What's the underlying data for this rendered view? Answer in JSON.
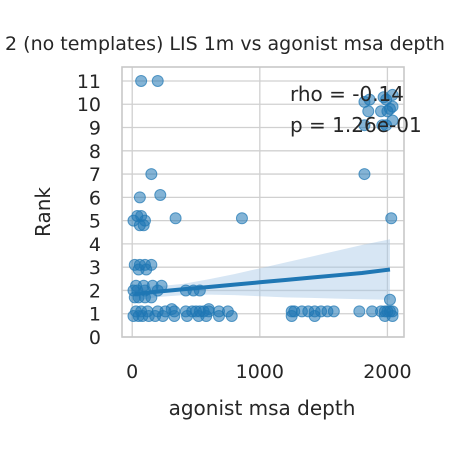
{
  "chart_data": {
    "type": "scatter",
    "title": "2 (no templates) LIS 1m vs agonist msa depth",
    "xlabel": "agonist msa depth",
    "ylabel": "Rank",
    "xlim": [
      -80,
      2130
    ],
    "ylim": [
      0,
      11.6
    ],
    "xticks": [
      0,
      1000,
      2000
    ],
    "yticks": [
      0,
      1,
      2,
      3,
      4,
      5,
      6,
      7,
      8,
      9,
      10,
      11
    ],
    "grid": true,
    "colors": {
      "points": "#1f77b4",
      "line": "#1f77b4",
      "band": "#a6c8e6",
      "grid": "#d0d0d0",
      "frame": "#c8c8c8"
    },
    "annotations": [
      "rho = -0.14",
      "p = 1.26e-01"
    ],
    "regression": {
      "x": [
        20,
        200,
        400,
        600,
        800,
        1000,
        1200,
        1400,
        1600,
        1800,
        2020
      ],
      "y": [
        1.85,
        1.95,
        2.05,
        2.15,
        2.25,
        2.35,
        2.45,
        2.55,
        2.65,
        2.75,
        2.9
      ],
      "lower": [
        1.55,
        1.72,
        1.8,
        1.82,
        1.8,
        1.75,
        1.7,
        1.68,
        1.65,
        1.62,
        1.6
      ],
      "upper": [
        2.15,
        2.18,
        2.28,
        2.48,
        2.7,
        2.95,
        3.2,
        3.45,
        3.7,
        3.95,
        4.2
      ]
    },
    "x": [
      70,
      200,
      1820,
      1960,
      1990,
      2040,
      1850,
      1950,
      2000,
      2020,
      2040,
      1820,
      1860,
      1990,
      1970,
      2040,
      150,
      1820,
      60,
      220,
      40,
      70,
      10,
      100,
      60,
      90,
      340,
      860,
      2030,
      20,
      60,
      100,
      150,
      50,
      110,
      30,
      90,
      160,
      230,
      10,
      40,
      100,
      200,
      420,
      480,
      530,
      20,
      50,
      100,
      150,
      310,
      600,
      30,
      70,
      120,
      200,
      260,
      330,
      420,
      470,
      500,
      530,
      560,
      600,
      680,
      750,
      1250,
      1270,
      1330,
      1380,
      1430,
      1480,
      1530,
      1580,
      1780,
      1880,
      1950,
      1980,
      2000,
      2020,
      2040,
      10,
      50,
      80,
      130,
      180,
      240,
      330,
      430,
      520,
      580,
      680,
      780,
      1250,
      1430,
      1980,
      2040,
      2020
    ],
    "y": [
      11,
      11,
      9.1,
      9.1,
      9.1,
      9.3,
      9.7,
      9.7,
      9.7,
      9.8,
      9.9,
      10.1,
      10.2,
      10.2,
      10.3,
      10.4,
      7,
      7,
      6,
      6.1,
      5.2,
      5.2,
      5,
      5,
      4.8,
      4.8,
      5.1,
      5.1,
      5.1,
      3.1,
      3.1,
      3.1,
      3.1,
      2.9,
      2.9,
      2.2,
      2.2,
      2.2,
      2.2,
      2,
      2,
      2,
      2,
      2,
      2,
      2,
      1.7,
      1.7,
      1.7,
      1.7,
      1.2,
      1.2,
      1.1,
      1.1,
      1.1,
      1.1,
      1.1,
      1.1,
      1.1,
      1.1,
      1.1,
      1.1,
      1.1,
      1.1,
      1.1,
      1.1,
      1.1,
      1.1,
      1.1,
      1.1,
      1.1,
      1.1,
      1.1,
      1.1,
      1.1,
      1.1,
      1.1,
      1.1,
      1.1,
      1.1,
      1.1,
      0.9,
      0.9,
      0.9,
      0.9,
      0.9,
      0.9,
      0.9,
      0.9,
      0.9,
      0.9,
      0.9,
      0.9,
      0.9,
      0.9,
      0.9,
      0.9,
      1.6
    ]
  }
}
